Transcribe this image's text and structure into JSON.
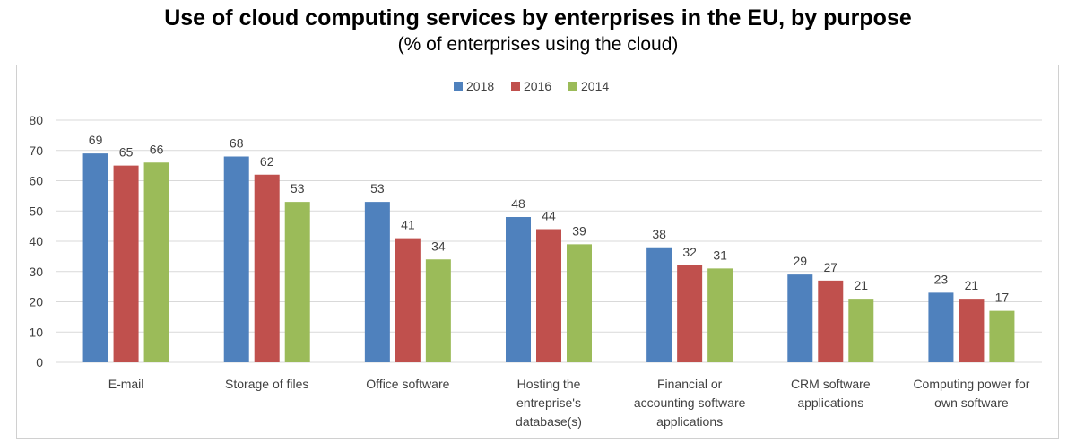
{
  "chart_data": {
    "type": "bar",
    "title": "Use of cloud computing services by enterprises in the EU, by purpose",
    "subtitle": "(% of enterprises using the cloud)",
    "categories": [
      [
        "E-mail"
      ],
      [
        "Storage of files"
      ],
      [
        "Office software"
      ],
      [
        "Hosting the",
        "entreprise's",
        "database(s)"
      ],
      [
        "Financial or",
        "accounting software",
        "applications"
      ],
      [
        "CRM software",
        "applications"
      ],
      [
        "Computing power for",
        "own software"
      ]
    ],
    "series": [
      {
        "name": "2018",
        "color": "#4f81bd",
        "values": [
          69,
          68,
          53,
          48,
          38,
          29,
          23
        ]
      },
      {
        "name": "2016",
        "color": "#c0504d",
        "values": [
          65,
          62,
          41,
          44,
          32,
          27,
          21
        ]
      },
      {
        "name": "2014",
        "color": "#9bbb59",
        "values": [
          66,
          53,
          34,
          39,
          31,
          21,
          17
        ]
      }
    ],
    "ylim": [
      0,
      80
    ],
    "yticks": [
      0,
      10,
      20,
      30,
      40,
      50,
      60,
      70,
      80
    ],
    "xlabel": "",
    "ylabel": "",
    "grid": true,
    "legend": "top-center"
  }
}
